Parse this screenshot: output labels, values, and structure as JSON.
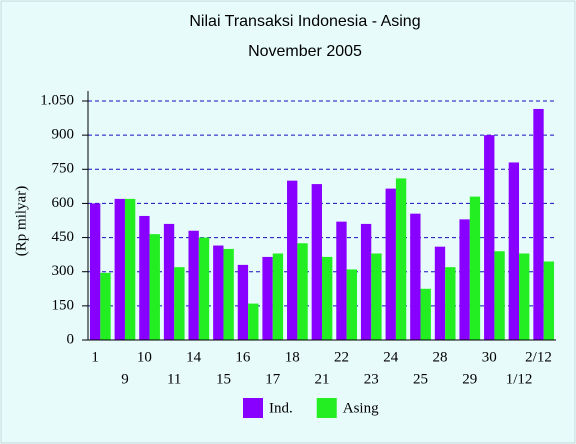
{
  "chart_data": {
    "type": "bar",
    "title": "Nilai Transaksi Indonesia - Asing",
    "subtitle": "November 2005",
    "y_label": "(Rp milyar)",
    "categories": [
      "1",
      "9",
      "10",
      "11",
      "14",
      "15",
      "16",
      "17",
      "18",
      "21",
      "22",
      "23",
      "24",
      "25",
      "28",
      "29",
      "30",
      "1/12",
      "2/12"
    ],
    "series": [
      {
        "name": "Ind.",
        "color": "#8800ff",
        "values": [
          600,
          620,
          545,
          510,
          480,
          415,
          330,
          365,
          700,
          685,
          520,
          510,
          665,
          555,
          410,
          530,
          900,
          780,
          1015
        ]
      },
      {
        "name": "Asing",
        "color": "#22ee22",
        "values": [
          295,
          620,
          465,
          320,
          450,
          400,
          160,
          380,
          425,
          365,
          310,
          380,
          710,
          225,
          320,
          630,
          390,
          380,
          345
        ]
      }
    ],
    "ylim": [
      0,
      1050
    ],
    "yticks": [
      0,
      150,
      300,
      450,
      600,
      750,
      900,
      {
        "value": 1050,
        "label": "1.050"
      }
    ],
    "grid": true,
    "legend": "bottom"
  }
}
